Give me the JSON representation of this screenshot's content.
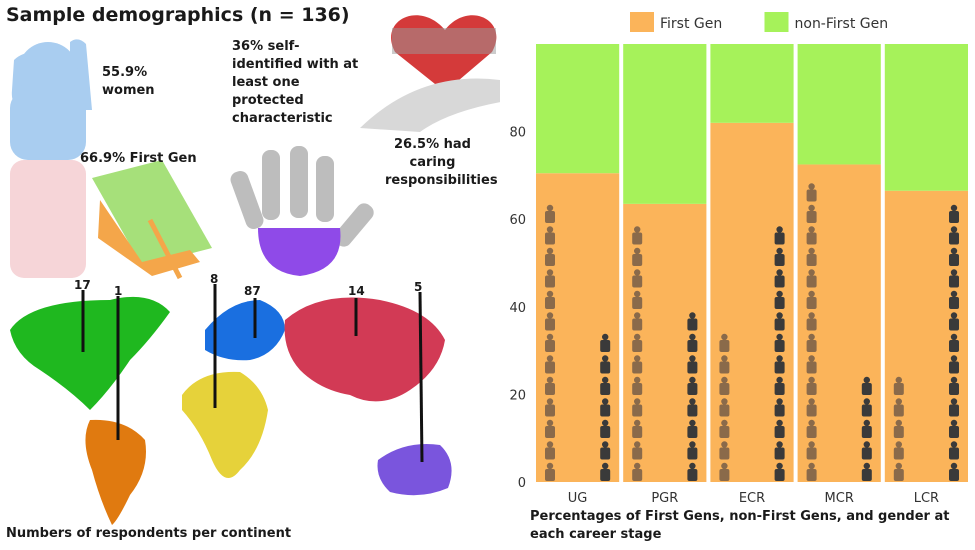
{
  "title": "Sample demographics (n = 136)",
  "stats": {
    "women": "55.9% women",
    "first_gen": "66.9% First Gen",
    "protected": "36% self-identified with at least one protected characteristic",
    "caring": "26.5% had caring responsibilities"
  },
  "continents": [
    {
      "name": "North America",
      "count": "17",
      "color": "#1fb81f"
    },
    {
      "name": "South America",
      "count": "1",
      "color": "#e07a10"
    },
    {
      "name": "Africa",
      "count": "8",
      "color": "#e6d23a"
    },
    {
      "name": "Europe",
      "count": "87",
      "color": "#1a6fe0"
    },
    {
      "name": "Asia",
      "count": "14",
      "color": "#d23a55"
    },
    {
      "name": "Oceania",
      "count": "5",
      "color": "#7a55dd"
    }
  ],
  "map_caption": "Numbers of respondents per continent",
  "chart_caption": "Percentages of First Gens, non-First Gens, and gender at each career stage",
  "colors": {
    "first_gen": "#fbb45a",
    "non_first_gen": "#a6f25a",
    "figure_female": "#8a6a4a",
    "figure_male": "#3a3a3a"
  },
  "chart_data": {
    "type": "bar",
    "stacked": true,
    "categories": [
      "UG",
      "PGR",
      "ECR",
      "MCR",
      "LCR"
    ],
    "series": [
      {
        "name": "First Gen",
        "values": [
          70.5,
          63.5,
          82,
          72.5,
          66.5
        ]
      },
      {
        "name": "non-First Gen",
        "values": [
          29.5,
          36.5,
          18,
          27.5,
          33.5
        ]
      }
    ],
    "gender_women_pct": [
      66,
      60,
      36,
      73,
      27
    ],
    "gender_men_pct": [
      39,
      43,
      63,
      27,
      67
    ],
    "yticks": [
      0,
      20,
      40,
      60,
      80
    ],
    "ylim": [
      0,
      100
    ],
    "legend_position": "top",
    "grid": false
  }
}
